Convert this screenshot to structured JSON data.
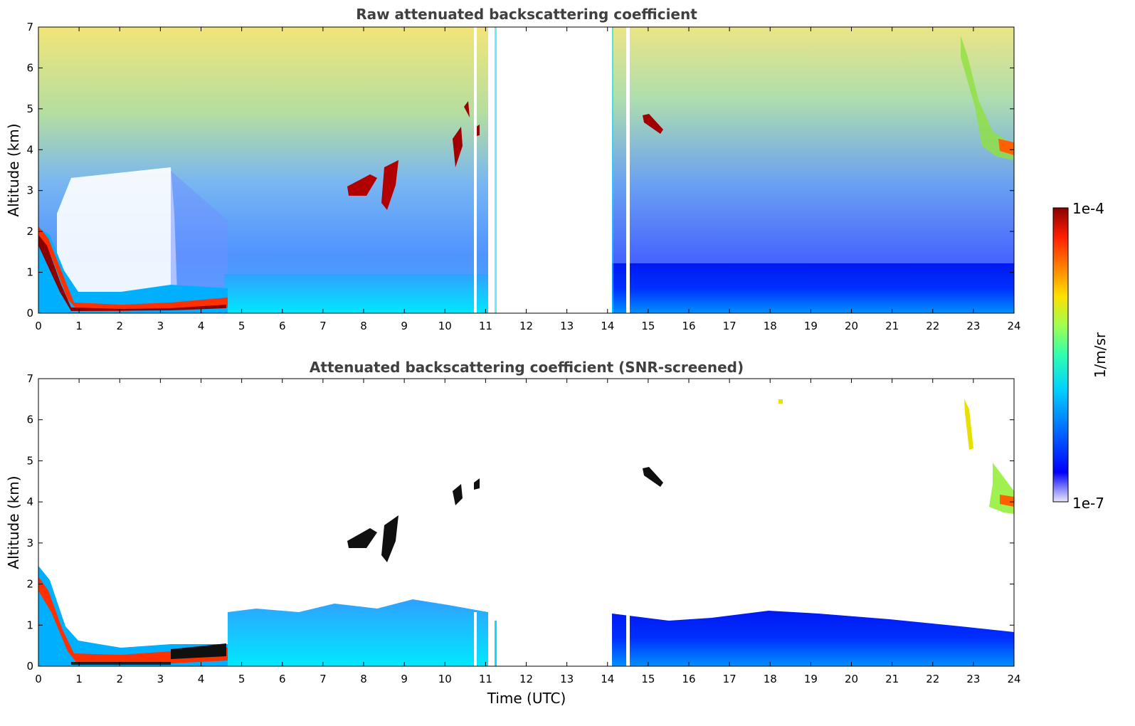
{
  "chart_data": [
    {
      "type": "heatmap",
      "title": "Raw attenuated backscattering coefficient",
      "xlabel": "",
      "ylabel": "Altitude (km)",
      "xlim": [
        0,
        24
      ],
      "ylim": [
        0,
        7
      ],
      "x_ticks": [
        "0",
        "1",
        "2",
        "3",
        "4",
        "5",
        "6",
        "7",
        "8",
        "9",
        "10",
        "11",
        "12",
        "13",
        "14",
        "15",
        "16",
        "17",
        "18",
        "19",
        "20",
        "21",
        "22",
        "23",
        "24"
      ],
      "y_ticks": [
        "0",
        "1",
        "2",
        "3",
        "4",
        "5",
        "6",
        "7"
      ],
      "data_gaps_utc": [
        [
          10.7,
          10.75
        ],
        [
          11.05,
          11.2
        ],
        [
          11.3,
          14.1
        ],
        [
          14.45,
          14.55
        ]
      ],
      "features": [
        {
          "name": "boundary layer top",
          "time_utc": [
            0,
            0.5,
            1,
            2,
            3,
            4,
            4.6
          ],
          "altitude_km": [
            2.1,
            1.3,
            0.4,
            0.3,
            0.3,
            0.35,
            0.4
          ]
        },
        {
          "name": "cloud",
          "time_utc": [
            7.6,
            8.9
          ],
          "altitude_km": [
            2.5,
            3.6
          ]
        },
        {
          "name": "cloud",
          "time_utc": [
            10.1,
            11.0
          ],
          "altitude_km": [
            3.6,
            5.0
          ]
        },
        {
          "name": "cloud",
          "time_utc": [
            14.8,
            15.3
          ],
          "altitude_km": [
            4.4,
            4.8
          ]
        },
        {
          "name": "cloud",
          "time_utc": [
            22.7,
            24
          ],
          "altitude_km": [
            3.7,
            6.5
          ]
        }
      ]
    },
    {
      "type": "heatmap",
      "title": "Attenuated backscattering coefficient (SNR-screened)",
      "xlabel": "Time (UTC)",
      "ylabel": "Altitude (km)",
      "xlim": [
        0,
        24
      ],
      "ylim": [
        0,
        7
      ],
      "x_ticks": [
        "0",
        "1",
        "2",
        "3",
        "4",
        "5",
        "6",
        "7",
        "8",
        "9",
        "10",
        "11",
        "12",
        "13",
        "14",
        "15",
        "16",
        "17",
        "18",
        "19",
        "20",
        "21",
        "22",
        "23",
        "24"
      ],
      "y_ticks": [
        "0",
        "1",
        "2",
        "3",
        "4",
        "5",
        "6",
        "7"
      ]
    }
  ],
  "colorbar": {
    "max_label": "1e-4",
    "min_label": "1e-7",
    "unit_label": "1/m/sr",
    "colors": [
      "#e8e8f8",
      "#0000ff",
      "#0080ff",
      "#00e0ff",
      "#40ff80",
      "#c0ff40",
      "#ffe000",
      "#ff8000",
      "#ff2000",
      "#8a0000"
    ]
  }
}
